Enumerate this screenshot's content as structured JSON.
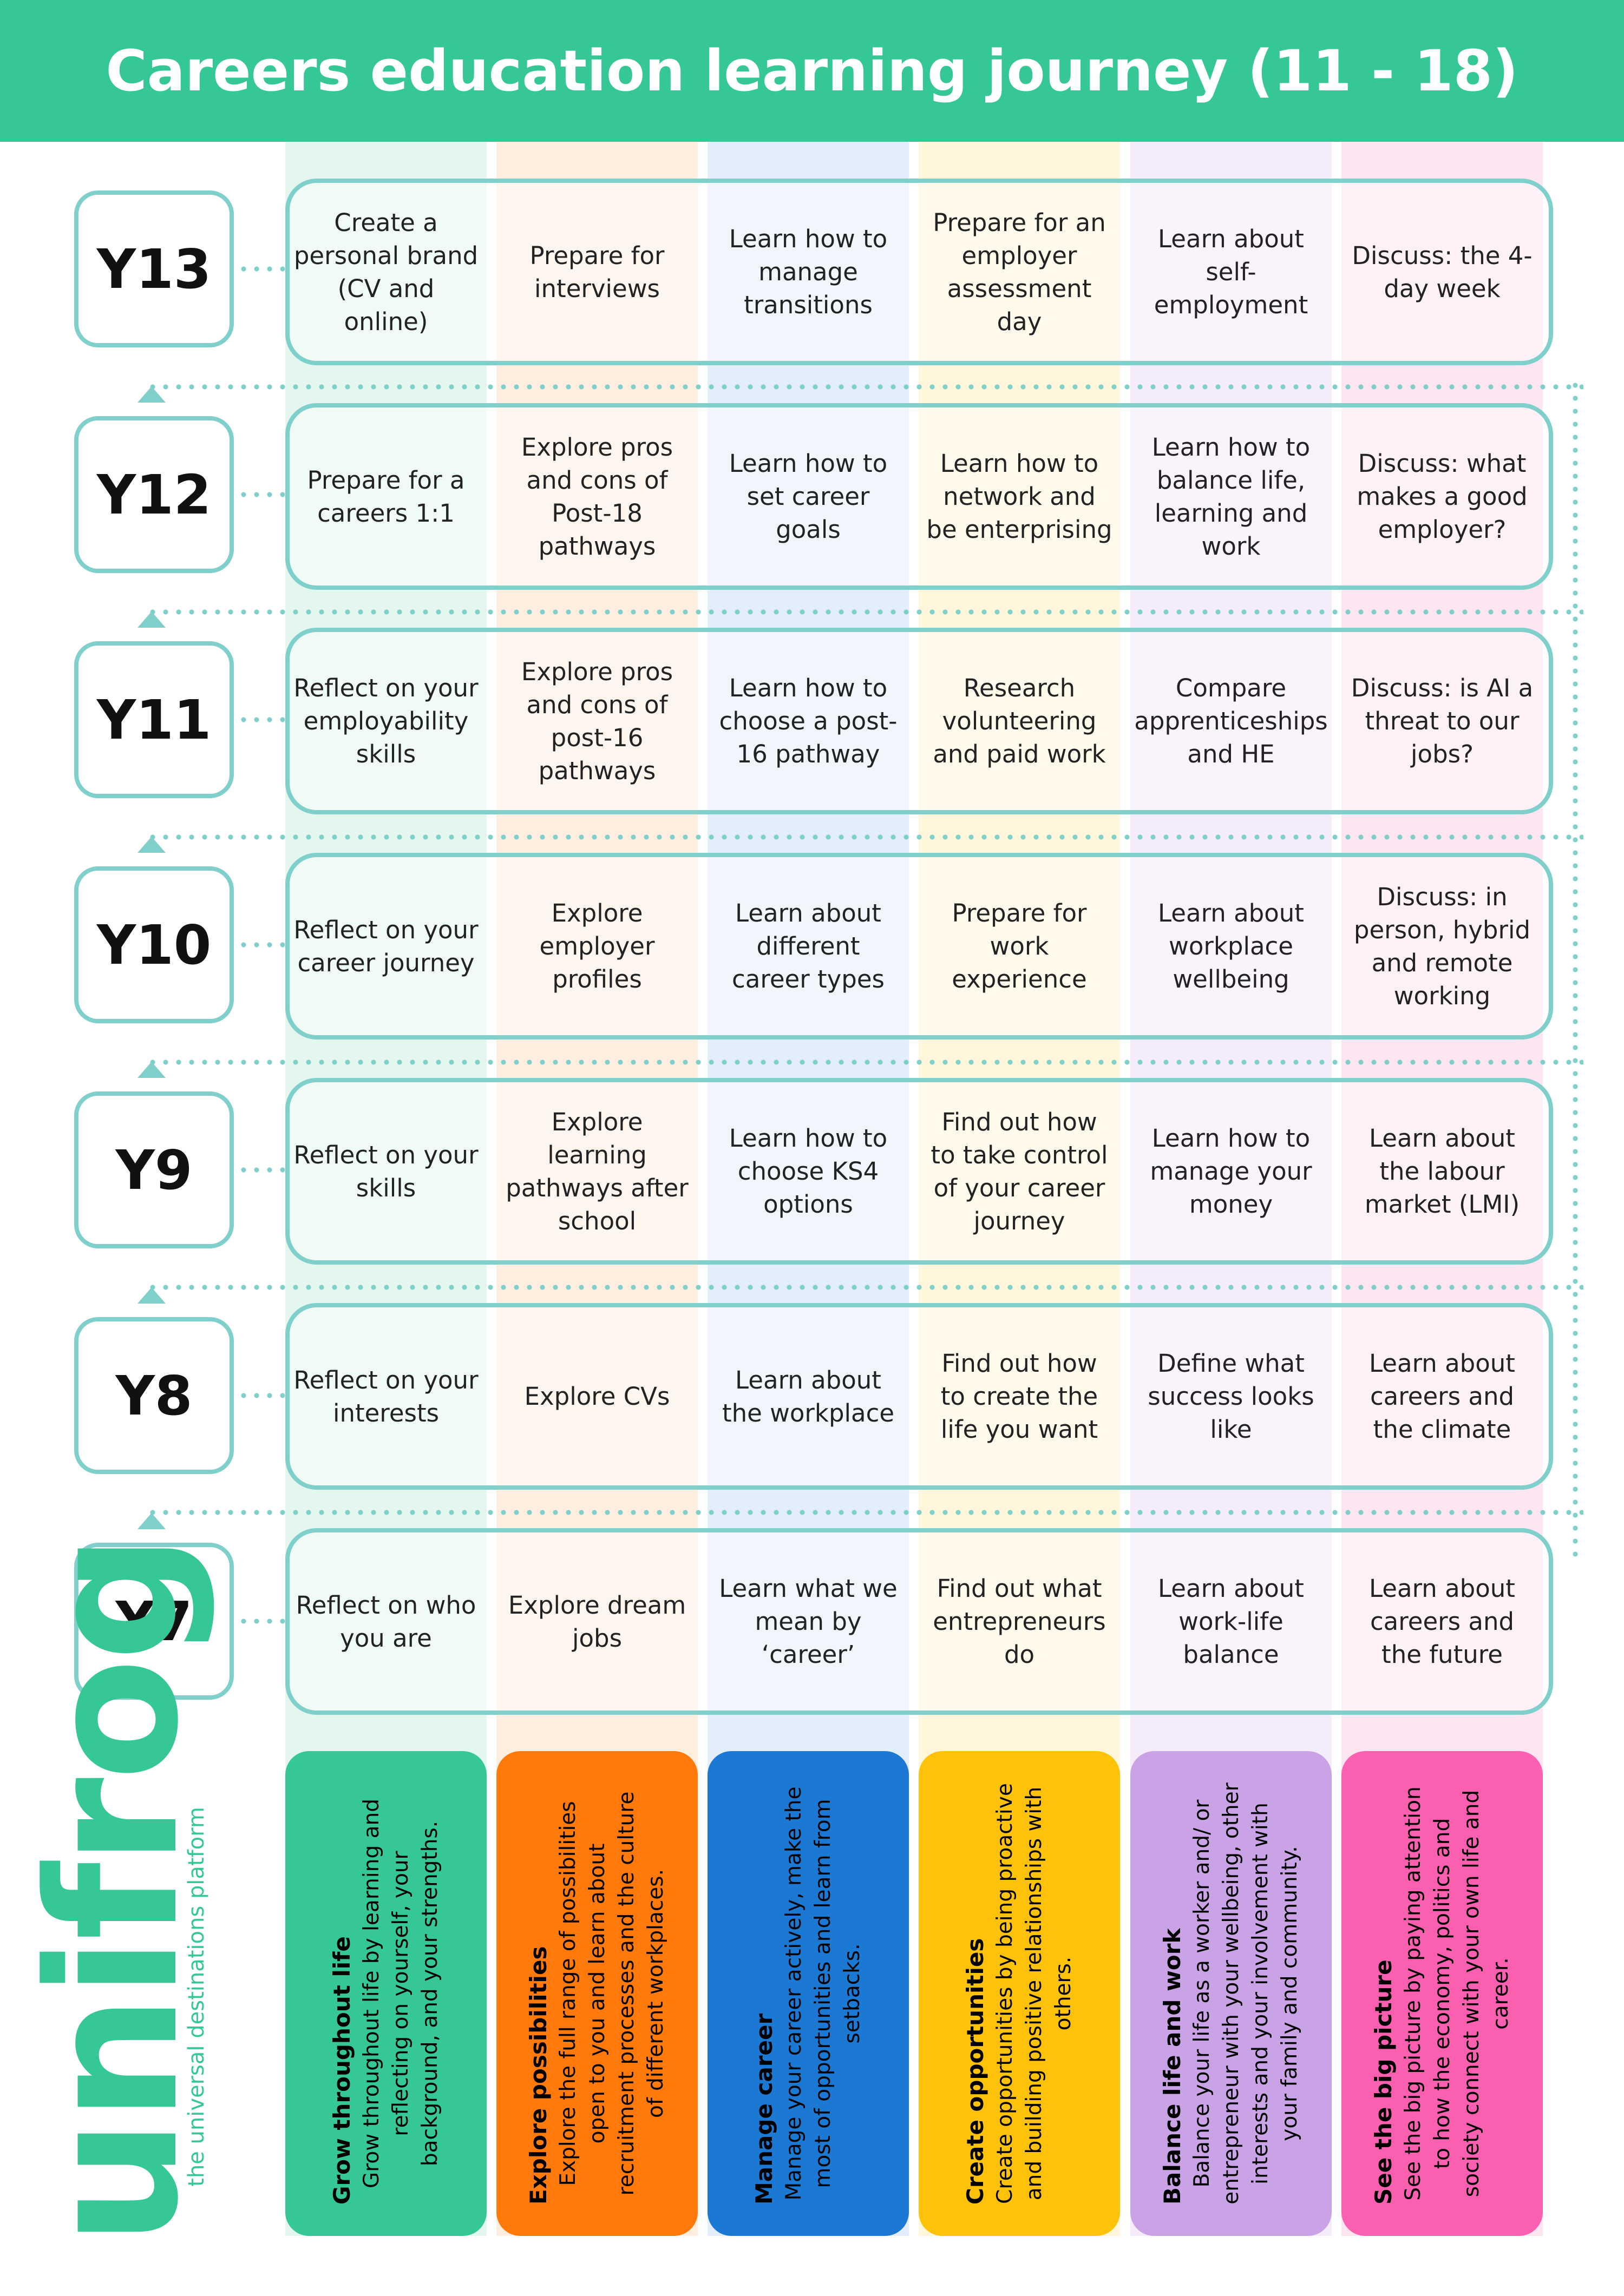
{
  "header": {
    "title": "Careers education learning journey (11 - 18)"
  },
  "years": [
    {
      "label": "Y13",
      "cells": [
        "Create a personal brand (CV and online)",
        "Prepare for interviews",
        "Learn how to manage transitions",
        "Prepare for an employer assessment day",
        "Learn about self-employment",
        "Discuss: the 4-day week"
      ]
    },
    {
      "label": "Y12",
      "cells": [
        "Prepare for a careers 1:1",
        "Explore pros and cons of Post-18 pathways",
        "Learn how to set career goals",
        "Learn how to network and be enterprising",
        "Learn how to balance life, learning and work",
        "Discuss: what makes a good employer?"
      ]
    },
    {
      "label": "Y11",
      "cells": [
        "Reflect on your employability skills",
        "Explore pros and cons of post-16 pathways",
        "Learn how to choose a post-16 pathway",
        "Research volunteering and paid work",
        "Compare apprenticeships and HE",
        "Discuss: is AI a threat to our jobs?"
      ]
    },
    {
      "label": "Y10",
      "cells": [
        "Reflect on your career journey",
        "Explore employer profiles",
        "Learn about different career types",
        "Prepare for work experience",
        "Learn about workplace wellbeing",
        "Discuss: in person, hybrid and remote working"
      ]
    },
    {
      "label": "Y9",
      "cells": [
        "Reflect on your skills",
        "Explore learning pathways after school",
        "Learn how to choose KS4 options",
        "Find out how to take control of your career journey",
        "Learn how to manage your money",
        "Learn about the labour market (LMI)"
      ]
    },
    {
      "label": "Y8",
      "cells": [
        "Reflect on your interests",
        "Explore CVs",
        "Learn about the workplace",
        "Find out how to create the life you want",
        "Define what success looks like",
        "Learn about careers and the climate"
      ]
    },
    {
      "label": "Y7",
      "cells": [
        "Reflect on who you are",
        "Explore dream jobs",
        "Learn what we mean by ‘career’",
        "Find out what entrepreneurs do",
        "Learn about work-life balance",
        "Learn about careers and the future"
      ]
    }
  ],
  "themes": [
    {
      "title": "Grow throughout life",
      "desc": "Grow throughout life by learning and reflecting on yourself, your background, and your strengths.",
      "color": "#35c796",
      "tint": "#e3f7ef"
    },
    {
      "title": "Explore possibilities",
      "desc": "Explore the full range of possibilities open to you and learn about recruitment processes and the culture of different workplaces.",
      "color": "#ff7a0a",
      "tint": "#fdeee0"
    },
    {
      "title": "Manage career",
      "desc": "Manage your career actively, make the most of opportunities and learn from setbacks.",
      "color": "#1b79d4",
      "tint": "#e3eefa"
    },
    {
      "title": "Create opportunities",
      "desc": "Create opportunities by being proactive and building positive relationships with others.",
      "color": "#ffc20a",
      "tint": "#fff6dc"
    },
    {
      "title": "Balance life and work",
      "desc": "Balance your life as a worker and/ or entrepreneur with your wellbeing, other interests and your involvement with your family and community.",
      "color": "#c9a3e6",
      "tint": "#f4ecfa"
    },
    {
      "title": "See the big picture",
      "desc": "See the big picture by paying attention to how the economy, politics and society connect with your own life and career.",
      "color": "#fa5fb0",
      "tint": "#fde6f1"
    }
  ],
  "logo": {
    "word": "unifrog",
    "tagline": "the universal destinations platform"
  },
  "colors": {
    "header": "#35c796",
    "frame": "#7fcfca"
  }
}
